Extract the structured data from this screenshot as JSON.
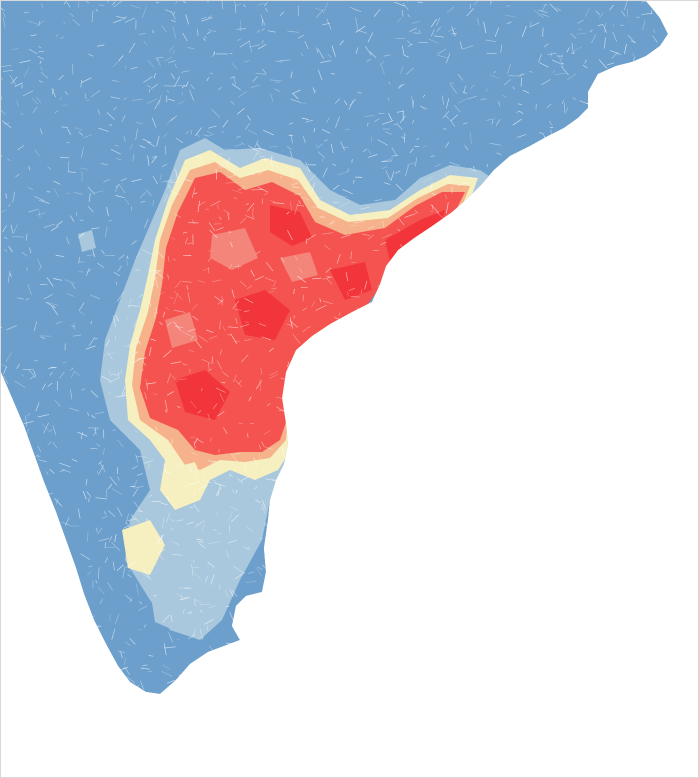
{
  "map": {
    "colors": {
      "background": "#ffffff",
      "blue": "#6c9fcc",
      "blue_light": "#a9c8dd",
      "cream": "#f6efbf",
      "peach": "#f6b28b",
      "salmon": "#f4857a",
      "red": "#f55350",
      "red_deep": "#f2353a",
      "boundary": "#ffffff"
    }
  }
}
